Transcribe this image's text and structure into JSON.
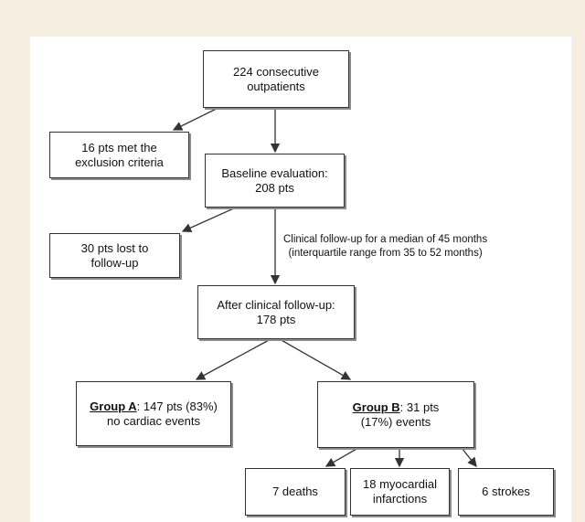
{
  "nodes": {
    "start": {
      "line1": "224 consecutive",
      "line2": "outpatients"
    },
    "excluded": {
      "line1": "16 pts met the",
      "line2": "exclusion criteria"
    },
    "baseline": {
      "line1": "Baseline evaluation:",
      "line2": "208 pts"
    },
    "lost": {
      "line1": "30 pts lost to",
      "line2": "follow-up"
    },
    "after": {
      "line1": "After clinical follow-up:",
      "line2": "178 pts"
    },
    "groupA": {
      "label": "Group A",
      "line1_rest": ": 147 pts (83%)",
      "line2": "no cardiac events"
    },
    "groupB": {
      "label": "Group B",
      "line1_rest": ": 31 pts",
      "line2": "(17%) events"
    },
    "deaths": {
      "line1": "7 deaths"
    },
    "mi": {
      "line1": "18 myocardial",
      "line2": "infarctions"
    },
    "strokes": {
      "line1": "6 strokes"
    }
  },
  "followup_note": {
    "line1": "Clinical follow-up for a median of 45 months",
    "line2": "(interquartile range from 35 to 52 months)"
  },
  "colors": {
    "background": "#f6eee0",
    "panel": "#ffffff",
    "border": "#333333",
    "shadow": "#8c8c8c"
  }
}
